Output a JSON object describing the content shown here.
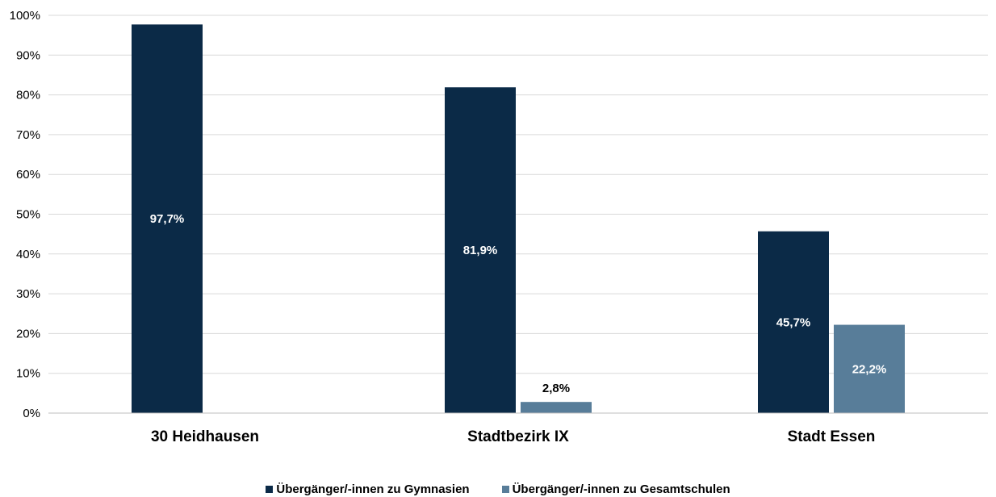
{
  "chart_data": {
    "type": "bar",
    "categories": [
      "30 Heidhausen",
      "Stadtbezirk IX",
      "Stadt Essen"
    ],
    "series": [
      {
        "name": "Übergänger/-innen zu Gymnasien",
        "values": [
          97.7,
          81.9,
          45.7
        ],
        "labels": [
          "97,7%",
          "81,9%",
          "45,7%"
        ],
        "color": "#0b2a47"
      },
      {
        "name": "Übergänger/-innen zu Gesamtschulen",
        "values": [
          null,
          2.8,
          22.2
        ],
        "labels": [
          "",
          "2,8%",
          "22,2%"
        ],
        "color": "#587d99"
      }
    ],
    "ylim": [
      0,
      100
    ],
    "yticks": [
      "0%",
      "10%",
      "20%",
      "30%",
      "40%",
      "50%",
      "60%",
      "70%",
      "80%",
      "90%",
      "100%"
    ],
    "grid": true,
    "legend_position": "bottom"
  }
}
